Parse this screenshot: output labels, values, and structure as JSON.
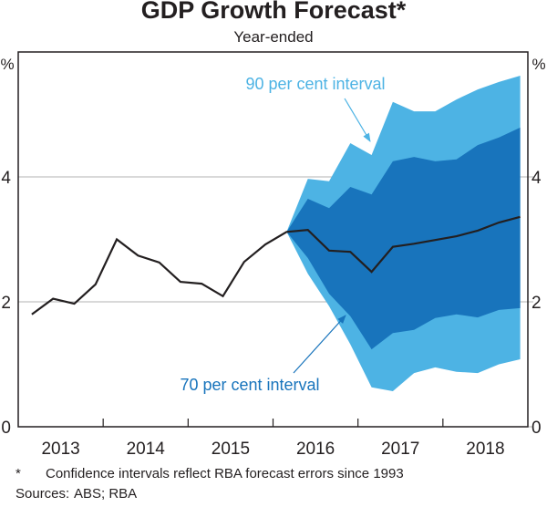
{
  "chart_data": {
    "type": "area",
    "title": "GDP Growth Forecast*",
    "subtitle": "Year-ended",
    "ylabel_left": "%",
    "ylabel_right": "%",
    "ylim": [
      0,
      6
    ],
    "yticks": [
      0,
      2,
      4
    ],
    "xlim": [
      2012.5,
      2018.5
    ],
    "xticks": [
      "2013",
      "2014",
      "2015",
      "2016",
      "2017",
      "2018"
    ],
    "grid": true,
    "colors": {
      "outer": "#4DB3E4",
      "inner": "#1874BC",
      "line": "#231F20",
      "grid": "#B3B3B3"
    },
    "series": [
      {
        "name": "Year-ended GDP growth",
        "x": [
          2012.66,
          2012.91,
          2013.16,
          2013.41,
          2013.66,
          2013.91,
          2014.16,
          2014.41,
          2014.66,
          2014.91,
          2015.16,
          2015.41,
          2015.66,
          2015.91,
          2016.16,
          2016.41,
          2016.66,
          2016.91,
          2017.16,
          2017.41,
          2017.66,
          2017.91,
          2018.16,
          2018.41
        ],
        "values": [
          1.8,
          2.05,
          1.97,
          2.28,
          3.0,
          2.74,
          2.63,
          2.32,
          2.29,
          2.09,
          2.64,
          2.92,
          3.12,
          3.15,
          2.82,
          2.8,
          2.48,
          2.88,
          2.93,
          2.99,
          3.05,
          3.14,
          3.27,
          3.36
        ]
      }
    ],
    "bands": [
      {
        "name": "90 per cent interval",
        "x": [
          2015.66,
          2015.91,
          2016.16,
          2016.41,
          2016.66,
          2016.91,
          2017.16,
          2017.41,
          2017.66,
          2017.91,
          2018.16,
          2018.41
        ],
        "upper": [
          3.12,
          3.97,
          3.93,
          4.54,
          4.35,
          5.2,
          5.05,
          5.05,
          5.24,
          5.4,
          5.52,
          5.62
        ],
        "lower": [
          3.12,
          2.45,
          1.93,
          1.32,
          0.63,
          0.57,
          0.86,
          0.95,
          0.88,
          0.86,
          1.0,
          1.08
        ]
      },
      {
        "name": "70 per cent interval",
        "x": [
          2015.66,
          2015.91,
          2016.16,
          2016.41,
          2016.66,
          2016.91,
          2017.16,
          2017.41,
          2017.66,
          2017.91,
          2018.16,
          2018.41
        ],
        "upper": [
          3.12,
          3.65,
          3.5,
          3.84,
          3.72,
          4.25,
          4.32,
          4.25,
          4.28,
          4.51,
          4.63,
          4.79
        ],
        "lower": [
          3.12,
          2.7,
          2.13,
          1.77,
          1.24,
          1.5,
          1.55,
          1.74,
          1.8,
          1.75,
          1.87,
          1.9
        ]
      }
    ],
    "annotations": [
      {
        "text": "90 per cent interval",
        "points_to": "90 per cent interval",
        "color": "#4DB3E4"
      },
      {
        "text": "70 per cent interval",
        "points_to": "70 per cent interval",
        "color": "#1874BC"
      }
    ]
  },
  "footnotes": {
    "star": "*",
    "note": "Confidence intervals reflect RBA forecast errors since 1993",
    "sources_label": "Sources:",
    "sources": "ABS; RBA"
  }
}
